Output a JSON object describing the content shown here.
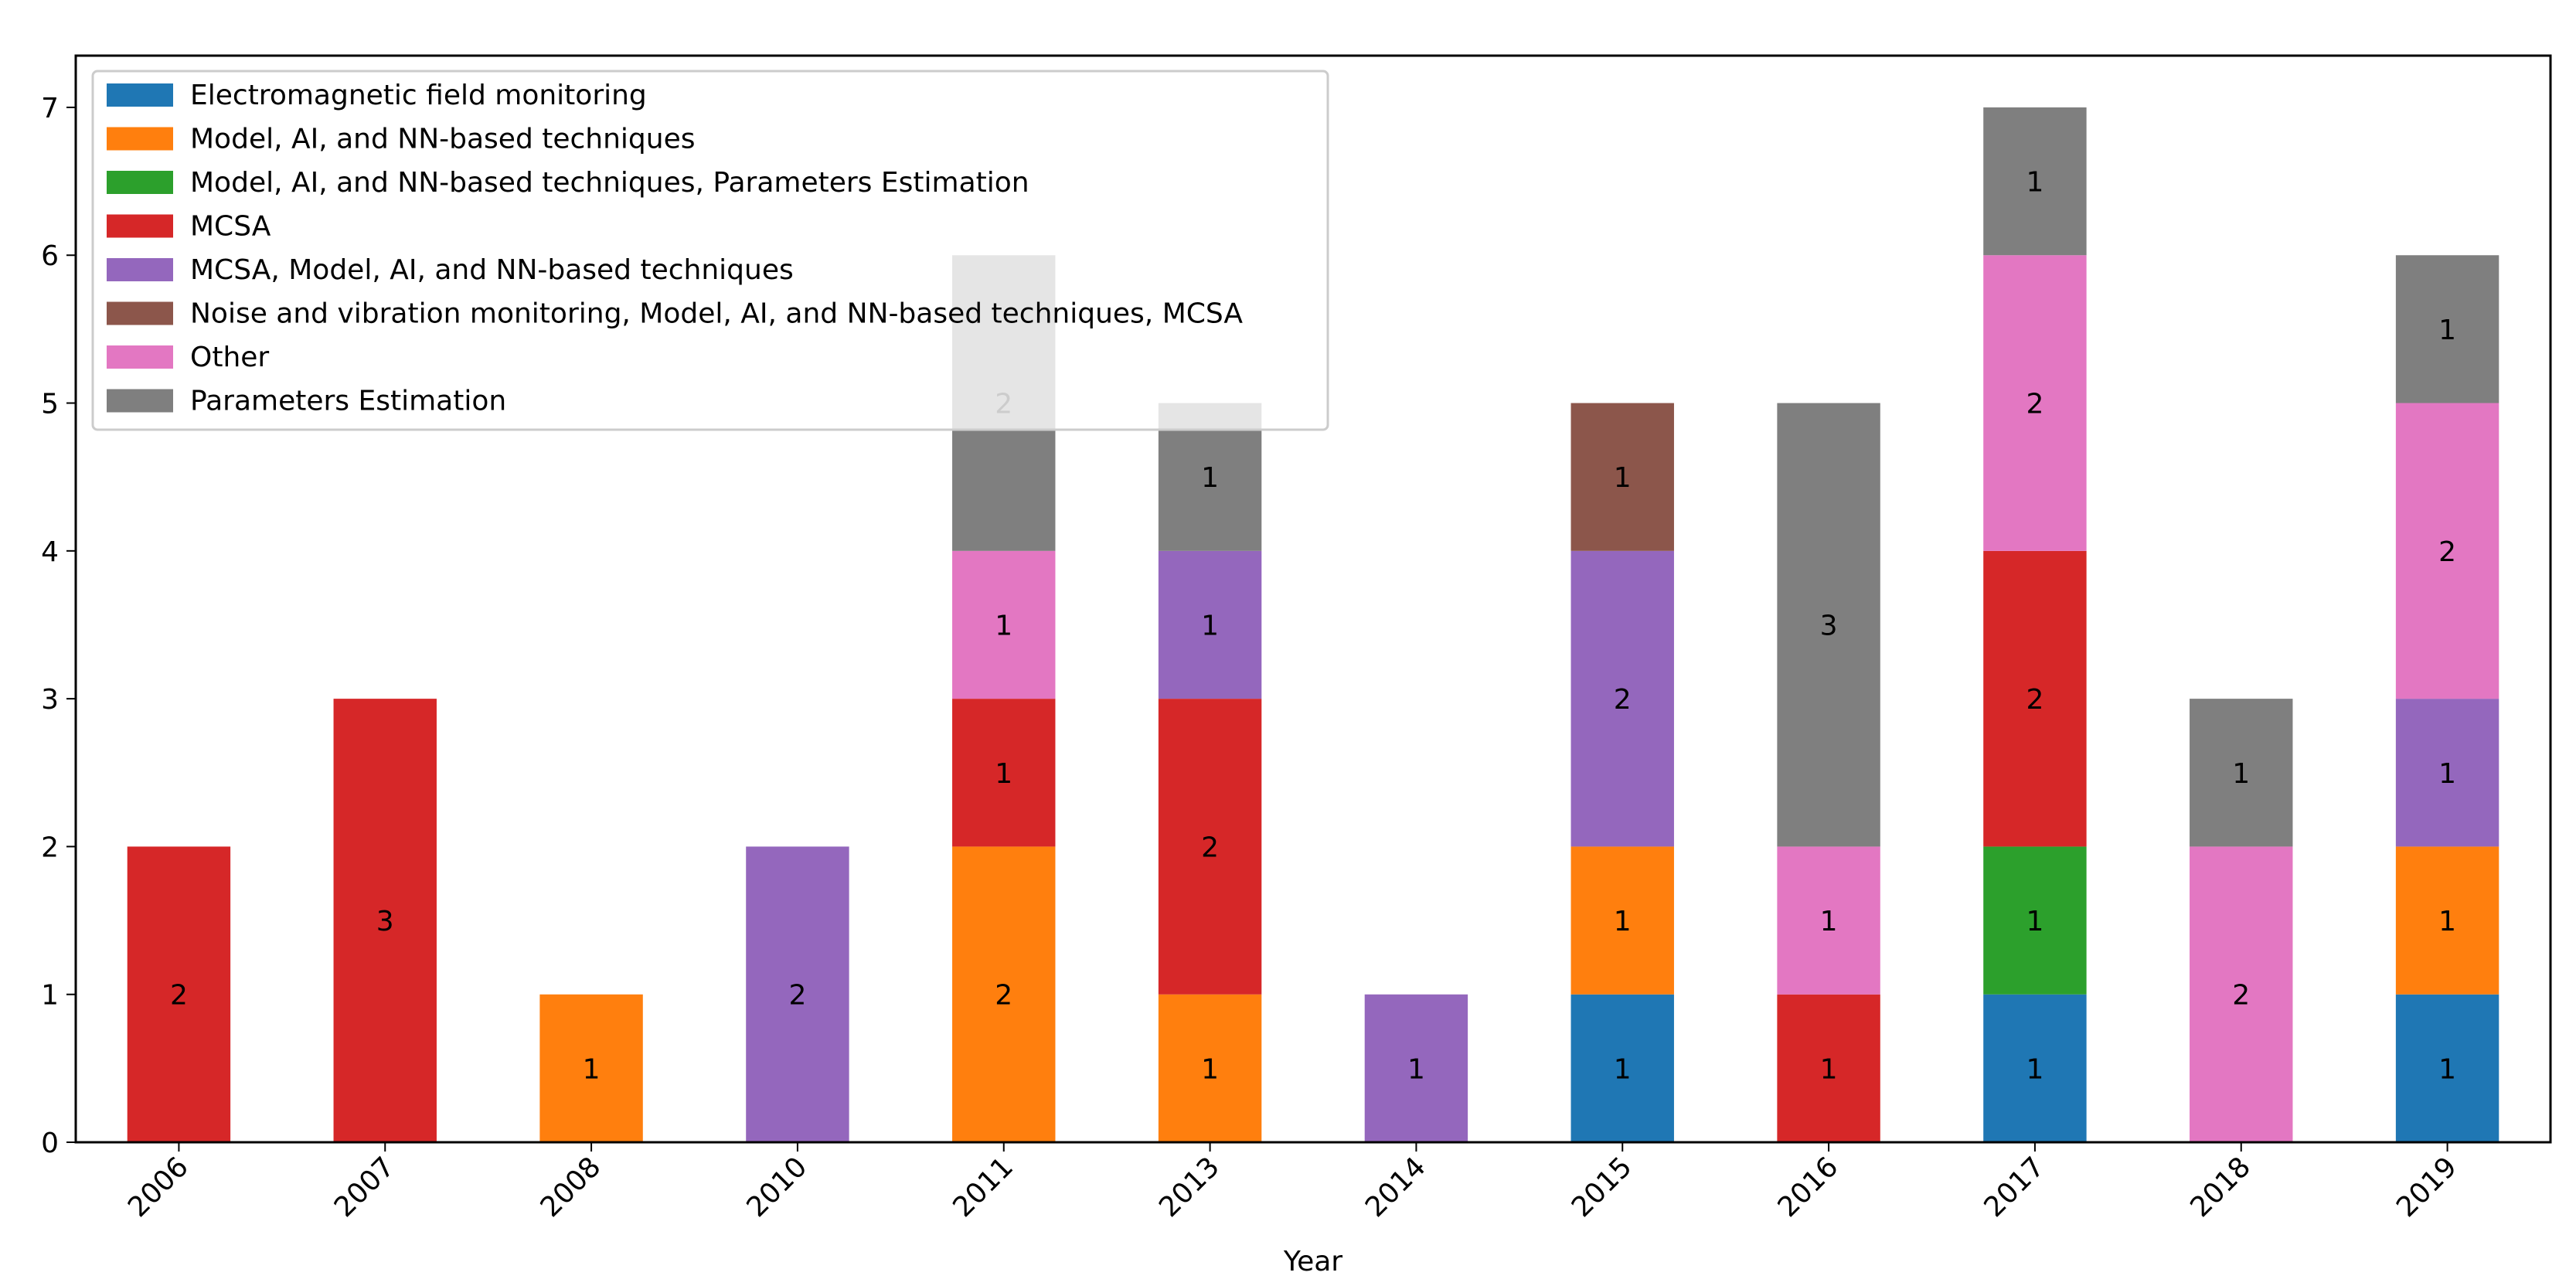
{
  "chart_data": {
    "type": "bar",
    "stacked": true,
    "title": "",
    "xlabel": "Year",
    "ylabel": "",
    "ylim": [
      0,
      7.35
    ],
    "yticks": [
      0,
      1,
      2,
      3,
      4,
      5,
      6,
      7
    ],
    "grid": false,
    "legend_position": "top-left",
    "categories": [
      "2006",
      "2007",
      "2008",
      "2010",
      "2011",
      "2013",
      "2014",
      "2015",
      "2016",
      "2017",
      "2018",
      "2019"
    ],
    "series": [
      {
        "name": "Electromagnetic field monitoring",
        "color": "#1f77b4",
        "values": [
          0,
          0,
          0,
          0,
          0,
          0,
          0,
          1,
          0,
          1,
          0,
          1
        ]
      },
      {
        "name": "Model, AI, and NN-based techniques",
        "color": "#ff7f0e",
        "values": [
          0,
          0,
          1,
          0,
          2,
          1,
          0,
          1,
          0,
          0,
          0,
          1
        ]
      },
      {
        "name": "Model, AI, and NN-based techniques, Parameters Estimation",
        "color": "#2ca02c",
        "values": [
          0,
          0,
          0,
          0,
          0,
          0,
          0,
          0,
          0,
          1,
          0,
          0
        ]
      },
      {
        "name": "MCSA",
        "color": "#d62728",
        "values": [
          2,
          3,
          0,
          0,
          1,
          2,
          0,
          0,
          1,
          2,
          0,
          0
        ]
      },
      {
        "name": "MCSA, Model, AI, and NN-based techniques",
        "color": "#9467bd",
        "values": [
          0,
          0,
          0,
          2,
          0,
          1,
          1,
          2,
          0,
          0,
          0,
          1
        ]
      },
      {
        "name": "Noise and vibration monitoring, Model, AI, and NN-based techniques, MCSA",
        "color": "#8c564b",
        "values": [
          0,
          0,
          0,
          0,
          0,
          0,
          0,
          1,
          0,
          0,
          0,
          0
        ]
      },
      {
        "name": "Other",
        "color": "#e377c2",
        "values": [
          0,
          0,
          0,
          0,
          1,
          0,
          0,
          0,
          1,
          2,
          2,
          2
        ]
      },
      {
        "name": "Parameters Estimation",
        "color": "#7f7f7f",
        "values": [
          0,
          0,
          0,
          0,
          2,
          1,
          0,
          0,
          3,
          1,
          1,
          1
        ]
      }
    ]
  }
}
